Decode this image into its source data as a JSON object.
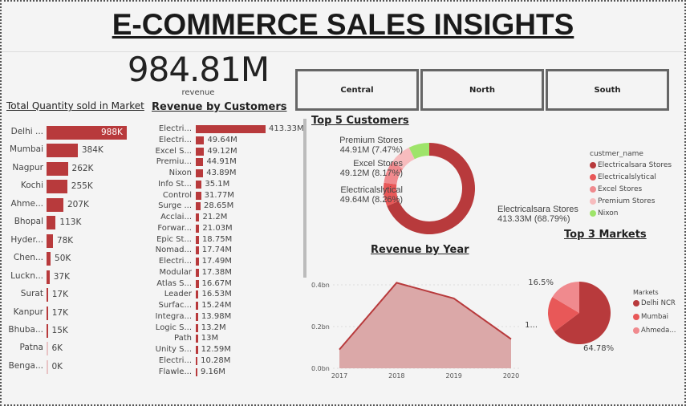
{
  "header": {
    "title": "E-COMMERCE SALES INSIGHTS"
  },
  "kpi": {
    "value": "984.81M",
    "label": "revenue"
  },
  "slicers": [
    "Central",
    "North",
    "South"
  ],
  "colors": {
    "primary": "#b83a3c",
    "red2": "#e85858",
    "red3": "#f08a8e",
    "pink": "#f7bcbe",
    "green": "#9ee46a",
    "area": "#dba8a8"
  },
  "chart_data": [
    {
      "type": "bar",
      "title": "Total Quantity sold in Market",
      "orientation": "horizontal",
      "categories": [
        "Delhi ...",
        "Mumbai",
        "Nagpur",
        "Kochi",
        "Ahme...",
        "Bhopal",
        "Hyder...",
        "Chen...",
        "Luckn...",
        "Surat",
        "Kanpur",
        "Bhuba...",
        "Patna",
        "Benga..."
      ],
      "values": [
        988,
        384,
        262,
        255,
        207,
        113,
        78,
        50,
        37,
        17,
        17,
        15,
        6,
        0
      ],
      "labels": [
        "988K",
        "384K",
        "262K",
        "255K",
        "207K",
        "113K",
        "78K",
        "50K",
        "37K",
        "17K",
        "17K",
        "15K",
        "6K",
        "0K"
      ]
    },
    {
      "type": "bar",
      "title": "Revenue by Customers",
      "orientation": "horizontal",
      "categories": [
        "Electri...",
        "Electri...",
        "Excel S...",
        "Premiu...",
        "Nixon",
        "Info St...",
        "Control",
        "Surge ...",
        "Acclai...",
        "Forwar...",
        "Epic St...",
        "Nomad...",
        "Electri...",
        "Modular",
        "Atlas S...",
        "Leader",
        "Surfac...",
        "Integra...",
        "Logic S...",
        "Path",
        "Unity S...",
        "Electri...",
        "Flawle..."
      ],
      "values": [
        413.33,
        49.64,
        49.12,
        44.91,
        43.89,
        35.1,
        31.77,
        28.65,
        21.2,
        21.03,
        18.75,
        17.74,
        17.49,
        17.38,
        16.67,
        16.53,
        15.24,
        13.98,
        13.2,
        13,
        12.59,
        10.28,
        9.16
      ],
      "labels": [
        "413.33M",
        "49.64M",
        "49.12M",
        "44.91M",
        "43.89M",
        "35.1M",
        "31.77M",
        "28.65M",
        "21.2M",
        "21.03M",
        "18.75M",
        "17.74M",
        "17.49M",
        "17.38M",
        "16.67M",
        "16.53M",
        "15.24M",
        "13.98M",
        "13.2M",
        "13M",
        "12.59M",
        "10.28M",
        "9.16M"
      ]
    },
    {
      "type": "pie",
      "subtype": "donut",
      "title": "Top 5 Customers",
      "legend_title": "custmer_name",
      "categories": [
        "Electricalsara Stores",
        "Electricalslytical",
        "Excel Stores",
        "Premium Stores",
        "Nixon"
      ],
      "values": [
        413.33,
        49.64,
        49.12,
        44.91,
        43.89
      ],
      "labels": [
        "413.33M (68.79%)",
        "49.64M (8.26%)",
        "49.12M (8.17%)",
        "44.91M (7.47%)",
        ""
      ],
      "colors": [
        "#b83a3c",
        "#e85858",
        "#f08a8e",
        "#f7bcbe",
        "#9ee46a"
      ]
    },
    {
      "type": "area",
      "title": "Revenue by Year",
      "x": [
        "2017",
        "2018",
        "2019",
        "2020"
      ],
      "values": [
        0.09,
        0.41,
        0.335,
        0.14
      ],
      "yticks": [
        "0.0bn",
        "0.2bn",
        "0.4bn"
      ],
      "ylim": [
        0,
        0.42
      ]
    },
    {
      "type": "pie",
      "title": "Top 3 Markets",
      "legend_title": "Markets",
      "categories": [
        "Delhi NCR",
        "Mumbai",
        "Ahmeda..."
      ],
      "values": [
        64.78,
        18.72,
        16.5
      ],
      "labels": [
        "64.78%",
        "1...",
        "16.5%"
      ],
      "colors": [
        "#b83a3c",
        "#e85858",
        "#f08a8e"
      ]
    }
  ]
}
